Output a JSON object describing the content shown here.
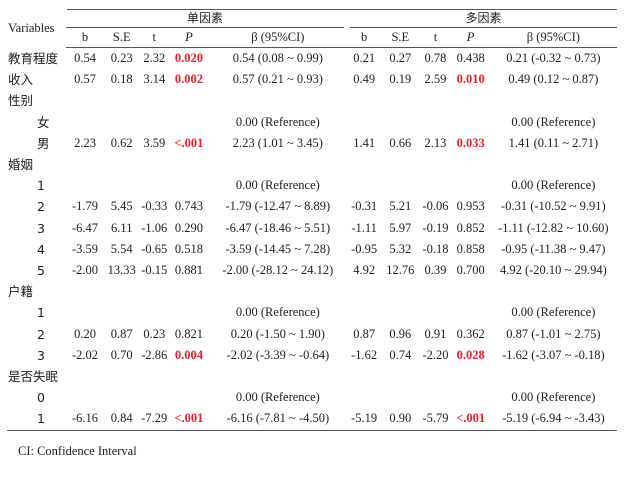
{
  "header": {
    "variables": "Variables",
    "group_uni": "单因素",
    "group_multi": "多因素",
    "cols": [
      "b",
      "S.E",
      "t",
      "P",
      "β (95%CI)"
    ]
  },
  "rows": [
    {
      "type": "data",
      "label": "教育程度",
      "u": [
        "0.54",
        "0.23",
        "2.32",
        "0.020",
        "0.54 (0.08 ~ 0.99)"
      ],
      "usig": true,
      "m": [
        "0.21",
        "0.27",
        "0.78",
        "0.438",
        "0.21 (-0.32 ~ 0.73)"
      ],
      "msig": false
    },
    {
      "type": "data",
      "label": "收入",
      "u": [
        "0.57",
        "0.18",
        "3.14",
        "0.002",
        "0.57 (0.21 ~ 0.93)"
      ],
      "usig": true,
      "m": [
        "0.49",
        "0.19",
        "2.59",
        "0.010",
        "0.49 (0.12 ~ 0.87)"
      ],
      "msig": true
    },
    {
      "type": "group",
      "label": "性别"
    },
    {
      "type": "ref",
      "label": "女",
      "uref": "0.00 (Reference)",
      "mref": "0.00 (Reference)"
    },
    {
      "type": "data",
      "label": "男",
      "sub": true,
      "u": [
        "2.23",
        "0.62",
        "3.59",
        "<.001",
        "2.23 (1.01 ~ 3.45)"
      ],
      "usig": true,
      "m": [
        "1.41",
        "0.66",
        "2.13",
        "0.033",
        "1.41 (0.11 ~ 2.71)"
      ],
      "msig": true
    },
    {
      "type": "group",
      "label": "婚姻"
    },
    {
      "type": "ref",
      "label": "1",
      "uref": "0.00 (Reference)",
      "mref": "0.00 (Reference)"
    },
    {
      "type": "data",
      "label": "2",
      "sub": true,
      "u": [
        "-1.79",
        "5.45",
        "-0.33",
        "0.743",
        "-1.79 (-12.47 ~ 8.89)"
      ],
      "usig": false,
      "m": [
        "-0.31",
        "5.21",
        "-0.06",
        "0.953",
        "-0.31 (-10.52 ~ 9.91)"
      ],
      "msig": false
    },
    {
      "type": "data",
      "label": "3",
      "sub": true,
      "u": [
        "-6.47",
        "6.11",
        "-1.06",
        "0.290",
        "-6.47 (-18.46 ~ 5.51)"
      ],
      "usig": false,
      "m": [
        "-1.11",
        "5.97",
        "-0.19",
        "0.852",
        "-1.11 (-12.82 ~ 10.60)"
      ],
      "msig": false
    },
    {
      "type": "data",
      "label": "4",
      "sub": true,
      "u": [
        "-3.59",
        "5.54",
        "-0.65",
        "0.518",
        "-3.59 (-14.45 ~ 7.28)"
      ],
      "usig": false,
      "m": [
        "-0.95",
        "5.32",
        "-0.18",
        "0.858",
        "-0.95 (-11.38 ~ 9.47)"
      ],
      "msig": false
    },
    {
      "type": "data",
      "label": "5",
      "sub": true,
      "u": [
        "-2.00",
        "13.33",
        "-0.15",
        "0.881",
        "-2.00 (-28.12 ~ 24.12)"
      ],
      "usig": false,
      "m": [
        "4.92",
        "12.76",
        "0.39",
        "0.700",
        "4.92 (-20.10 ~ 29.94)"
      ],
      "msig": false
    },
    {
      "type": "group",
      "label": "户籍"
    },
    {
      "type": "ref",
      "label": "1",
      "uref": "0.00 (Reference)",
      "mref": "0.00 (Reference)"
    },
    {
      "type": "data",
      "label": "2",
      "sub": true,
      "u": [
        "0.20",
        "0.87",
        "0.23",
        "0.821",
        "0.20 (-1.50 ~ 1.90)"
      ],
      "usig": false,
      "m": [
        "0.87",
        "0.96",
        "0.91",
        "0.362",
        "0.87 (-1.01 ~ 2.75)"
      ],
      "msig": false
    },
    {
      "type": "data",
      "label": "3",
      "sub": true,
      "u": [
        "-2.02",
        "0.70",
        "-2.86",
        "0.004",
        "-2.02 (-3.39 ~ -0.64)"
      ],
      "usig": true,
      "m": [
        "-1.62",
        "0.74",
        "-2.20",
        "0.028",
        "-1.62 (-3.07 ~ -0.18)"
      ],
      "msig": true
    },
    {
      "type": "group",
      "label": "是否失眠"
    },
    {
      "type": "ref",
      "label": "0",
      "uref": "0.00 (Reference)",
      "mref": "0.00 (Reference)"
    },
    {
      "type": "data",
      "label": "1",
      "sub": true,
      "u": [
        "-6.16",
        "0.84",
        "-7.29",
        "<.001",
        "-6.16 (-7.81 ~ -4.50)"
      ],
      "usig": true,
      "m": [
        "-5.19",
        "0.90",
        "-5.79",
        "<.001",
        "-5.19 (-6.94 ~ -3.43)"
      ],
      "msig": true
    }
  ],
  "footnote": "CI: Confidence Interval",
  "colors": {
    "significant": "#e8202a",
    "rule": "#555555"
  }
}
